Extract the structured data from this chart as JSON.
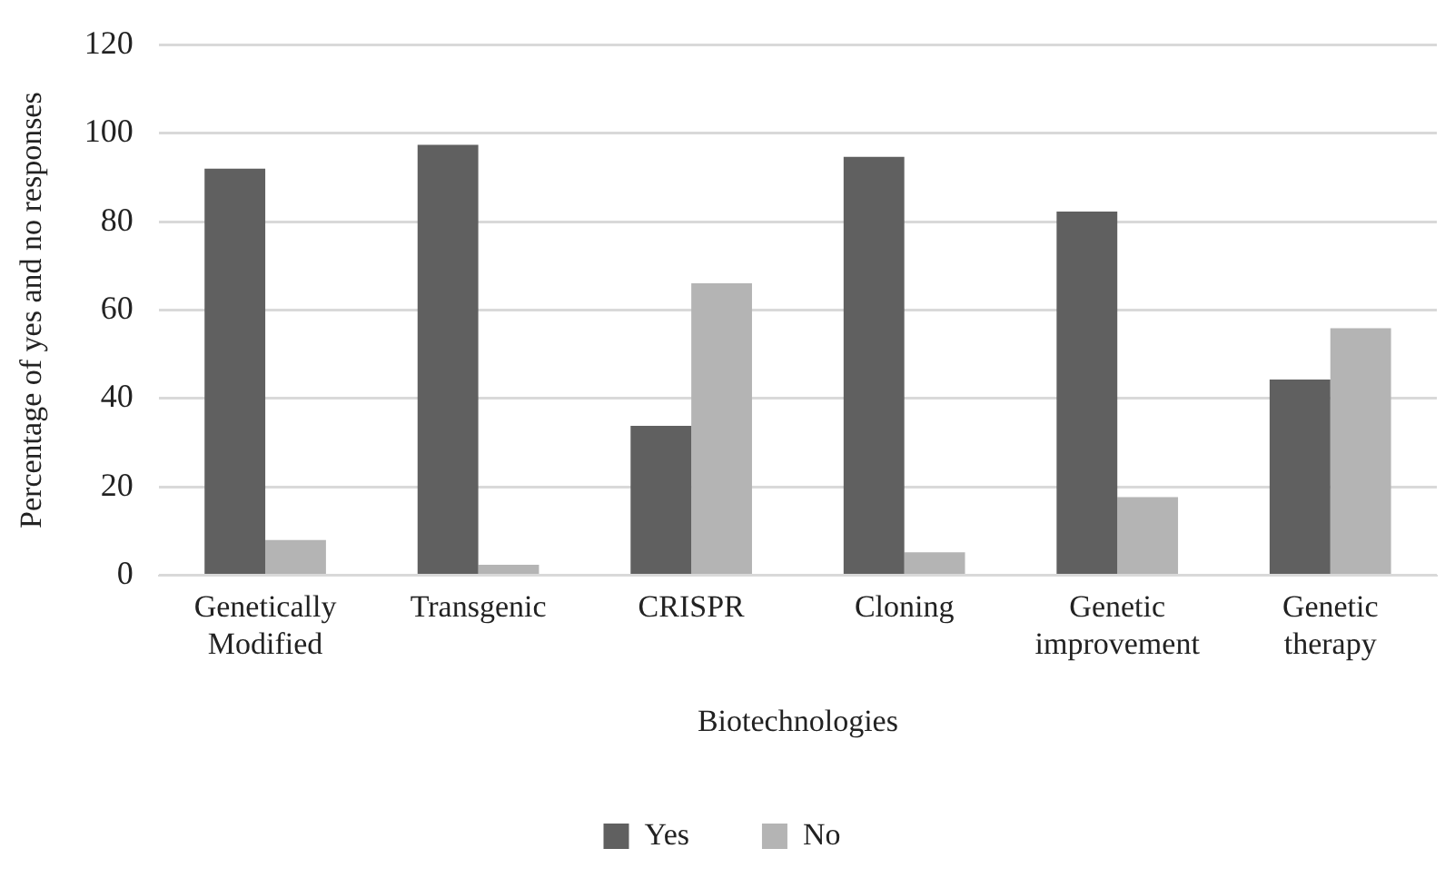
{
  "chart_data": {
    "type": "bar",
    "xlabel": "Biotechnologies",
    "ylabel": "Percentage of yes and no responses",
    "categories": [
      "Genetically Modified",
      "Transgenic",
      "CRISPR",
      "Cloning",
      "Genetic improvement",
      "Genetic therapy"
    ],
    "series": [
      {
        "name": "Yes",
        "color": "#606060",
        "values": [
          92,
          97.4,
          33.8,
          94.7,
          82.3,
          44.3
        ]
      },
      {
        "name": "No",
        "color": "#b4b4b4",
        "values": [
          8,
          2.4,
          66.1,
          5.2,
          17.7,
          55.9
        ]
      }
    ],
    "ylim": [
      0,
      120
    ],
    "yticks": [
      0,
      20,
      40,
      60,
      80,
      100,
      120
    ],
    "grid": "y",
    "legend": "bottom"
  }
}
